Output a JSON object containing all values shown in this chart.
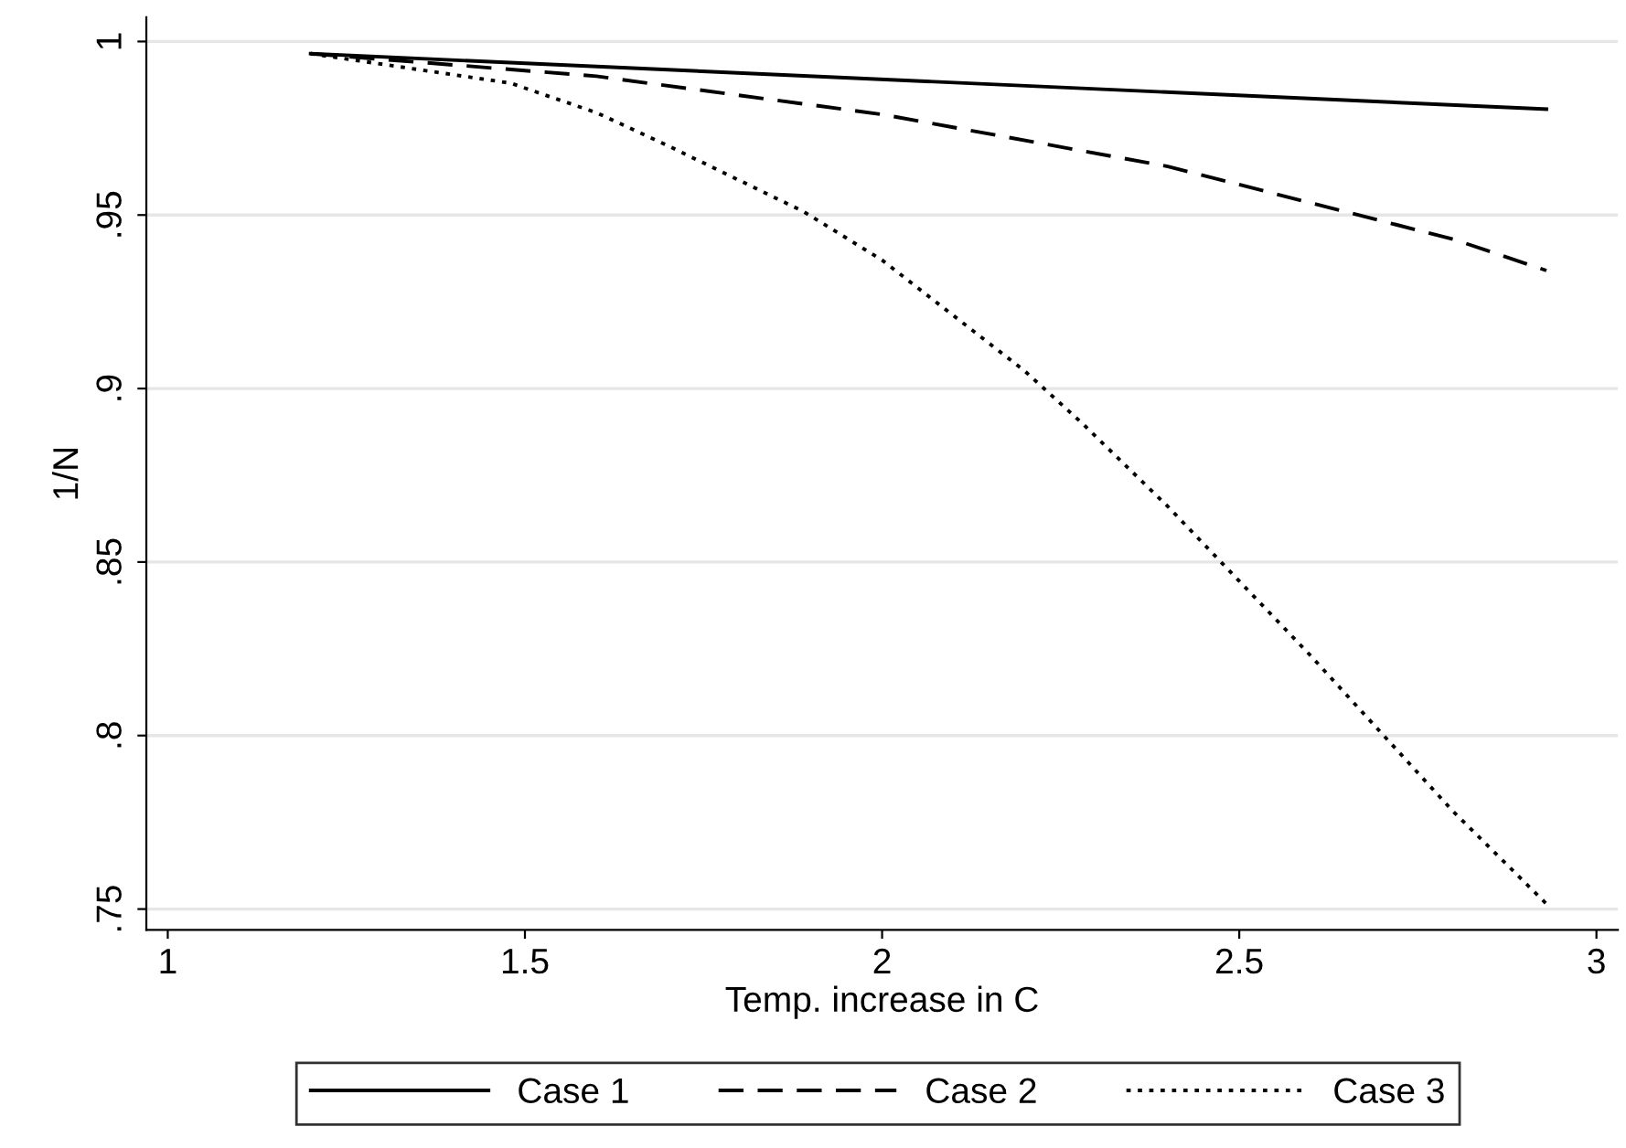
{
  "chart_data": {
    "type": "line",
    "xlabel": "Temp. increase in C",
    "ylabel": "1/N",
    "xlim": [
      0.97,
      3.03
    ],
    "ylim": [
      0.744,
      1.007
    ],
    "xticks": [
      1,
      1.5,
      2,
      2.5,
      3
    ],
    "yticks": [
      {
        "value": 0.75,
        "label": ".75"
      },
      {
        "value": 0.8,
        "label": ".8"
      },
      {
        "value": 0.85,
        "label": ".85"
      },
      {
        "value": 0.9,
        "label": ".9"
      },
      {
        "value": 0.95,
        "label": ".95"
      },
      {
        "value": 1,
        "label": "1"
      }
    ],
    "grid": "y",
    "legend": "bottom",
    "marker": "none",
    "series": [
      {
        "name": "Case 1",
        "color": "#000000",
        "line_style": "solid",
        "x": [
          1.2,
          2.93
        ],
        "values": [
          0.9965,
          0.9805
        ]
      },
      {
        "name": "Case 2",
        "color": "#000000",
        "line_style": "dashed",
        "x": [
          1.2,
          1.6,
          2.0,
          2.4,
          2.8,
          2.93
        ],
        "values": [
          0.9965,
          0.99,
          0.979,
          0.964,
          0.943,
          0.934
        ]
      },
      {
        "name": "Case 3",
        "color": "#000000",
        "line_style": "dotted",
        "x": [
          1.2,
          1.48,
          1.6,
          1.7,
          1.8,
          1.89,
          2.0,
          2.2,
          2.28,
          2.4,
          2.6,
          2.8,
          2.93
        ],
        "values": [
          0.9965,
          0.988,
          0.9795,
          0.97,
          0.96,
          0.951,
          0.937,
          0.905,
          0.89,
          0.866,
          0.823,
          0.778,
          0.7515
        ]
      }
    ]
  }
}
